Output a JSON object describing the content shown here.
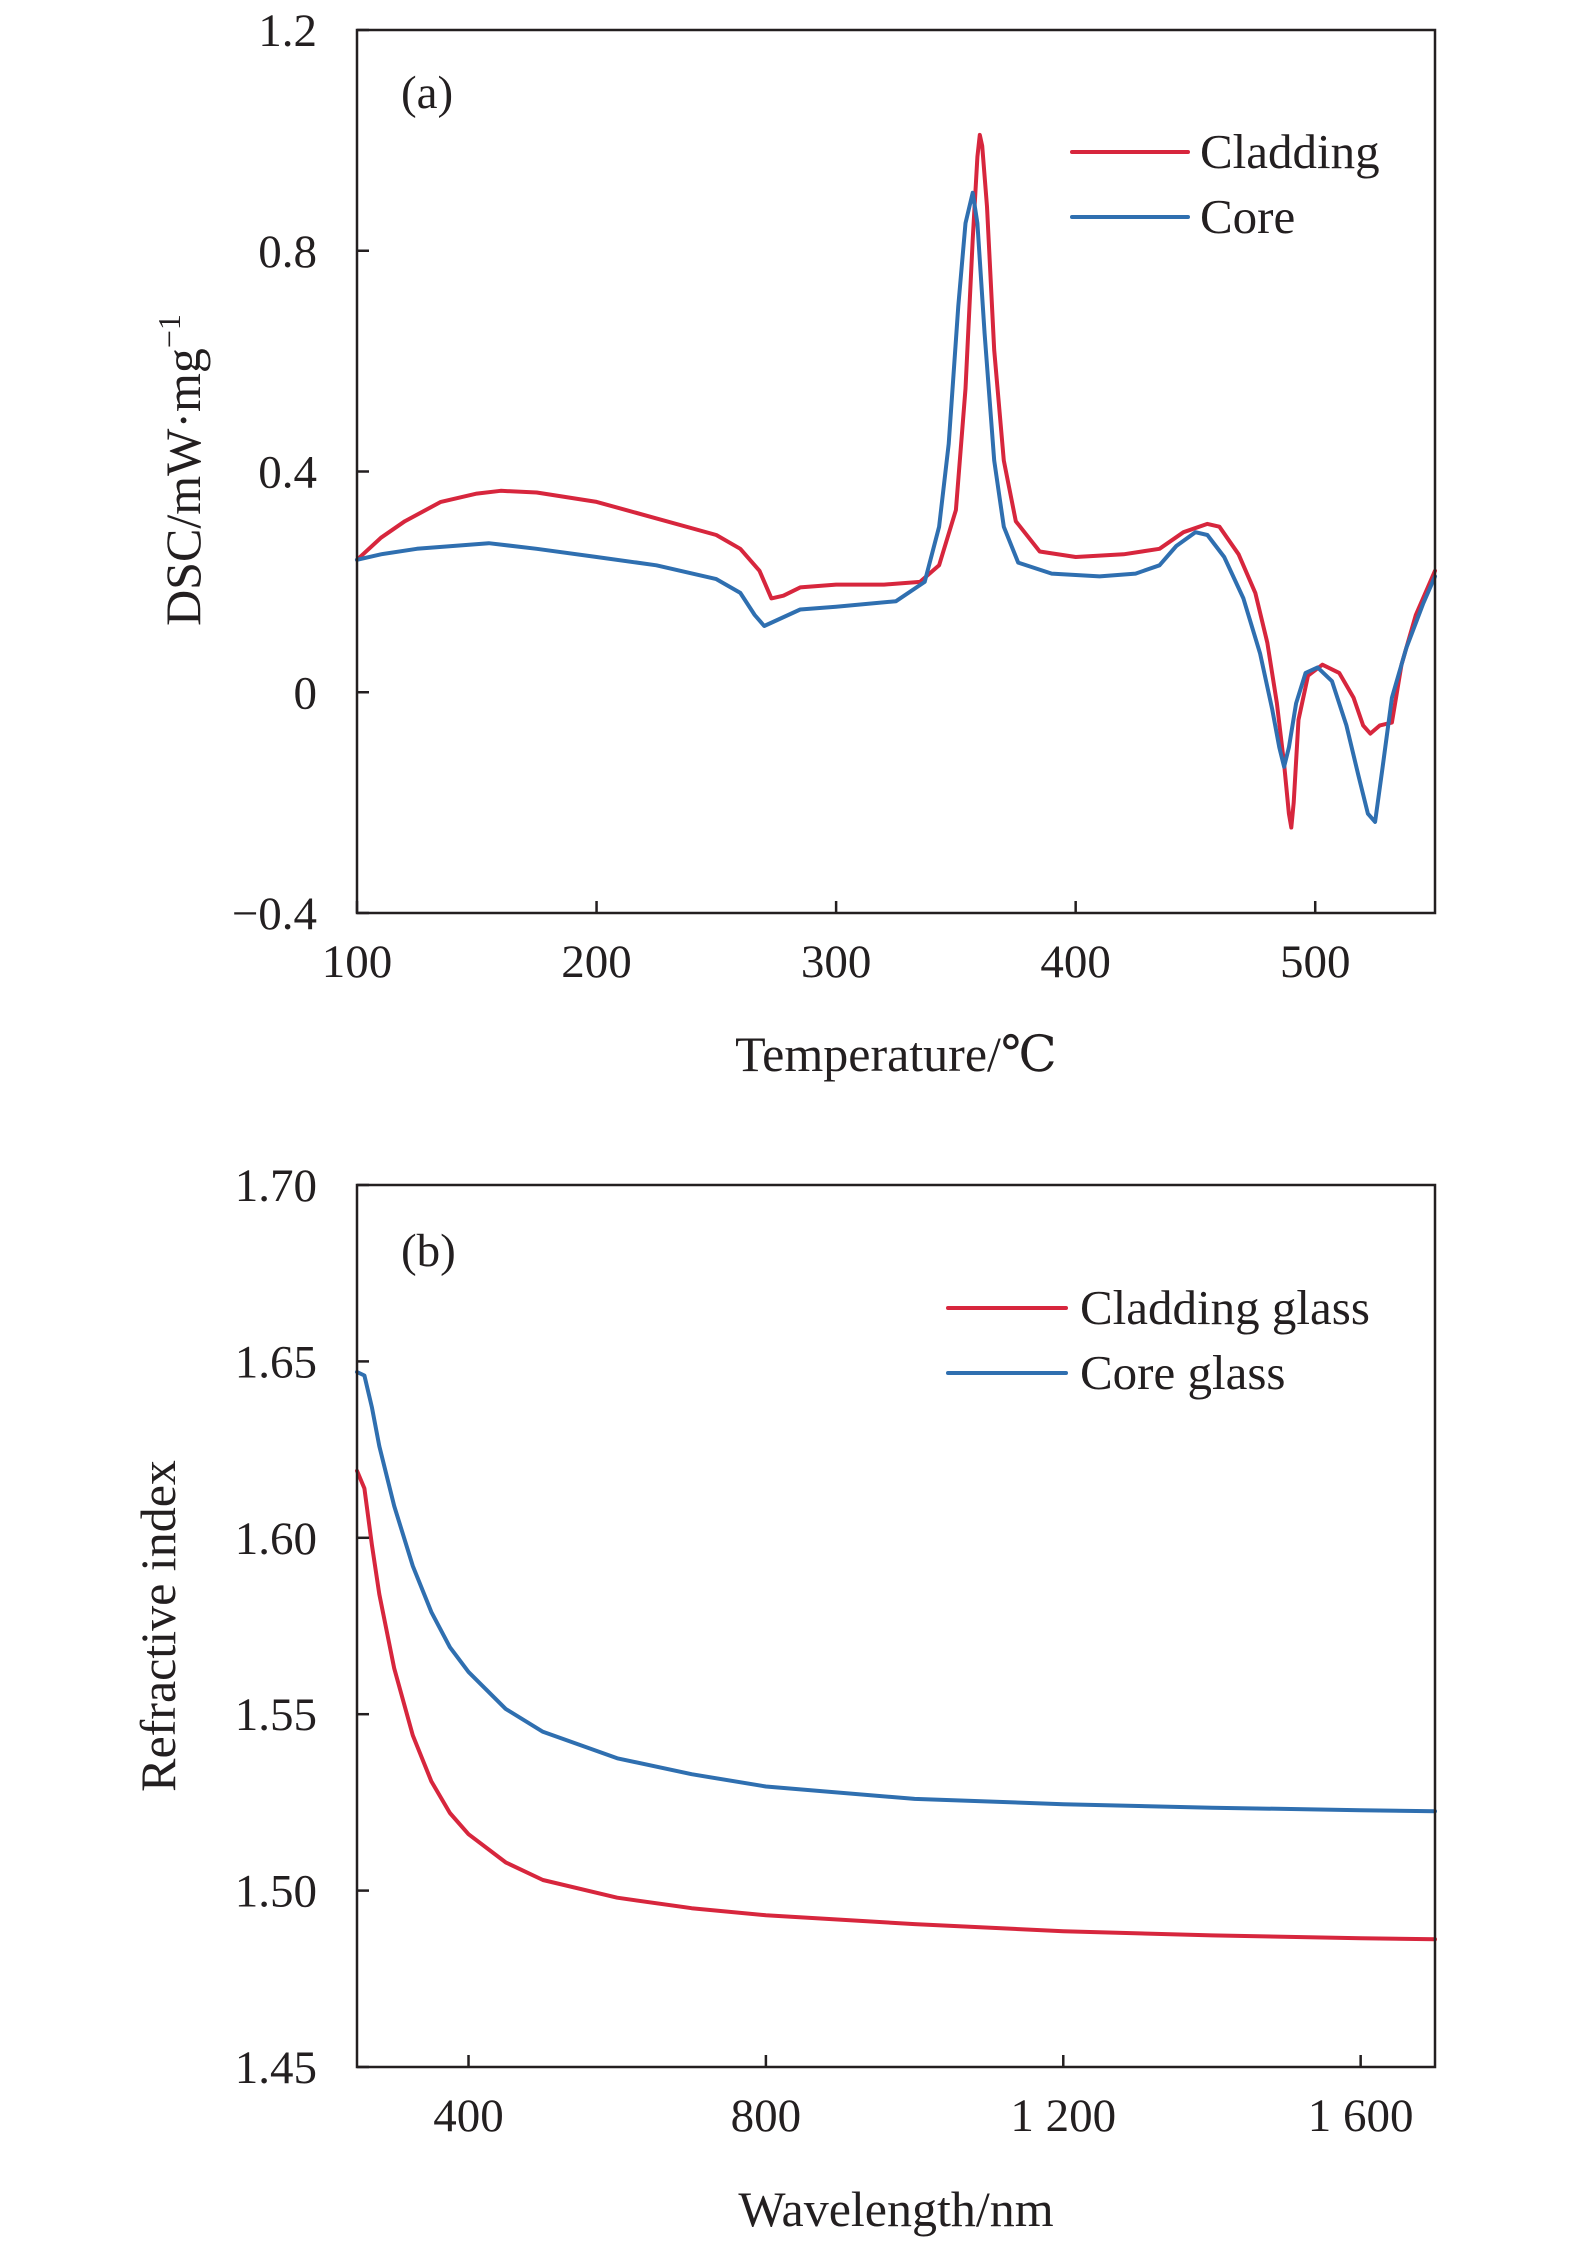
{
  "colors": {
    "cladding": "#d7263d",
    "core": "#2f6fb0",
    "axis": "#231f20"
  },
  "chart_data": [
    {
      "type": "line",
      "panel_label": "(a)",
      "xlabel": "Temperature/℃",
      "ylabel": "DSC/mW·mg",
      "ylabel_sup": "−1",
      "xlim": [
        100,
        550
      ],
      "ylim": [
        -0.4,
        1.2
      ],
      "xticks": [
        100,
        200,
        300,
        400,
        500
      ],
      "xtick_labels": [
        "100",
        "200",
        "300",
        "400",
        "500"
      ],
      "yticks": [
        -0.4,
        0,
        0.4,
        0.8,
        1.2
      ],
      "ytick_labels": [
        "−0.4",
        "0",
        "0.4",
        "0.8",
        "1.2"
      ],
      "legend_position": "top-right",
      "series": [
        {
          "name": "Cladding",
          "color_key": "cladding",
          "points": [
            [
              100,
              0.24
            ],
            [
              110,
              0.28
            ],
            [
              120,
              0.31
            ],
            [
              135,
              0.345
            ],
            [
              150,
              0.36
            ],
            [
              160,
              0.365
            ],
            [
              175,
              0.362
            ],
            [
              200,
              0.345
            ],
            [
              225,
              0.315
            ],
            [
              250,
              0.285
            ],
            [
              260,
              0.26
            ],
            [
              268,
              0.22
            ],
            [
              273,
              0.17
            ],
            [
              278,
              0.175
            ],
            [
              285,
              0.19
            ],
            [
              300,
              0.195
            ],
            [
              320,
              0.195
            ],
            [
              335,
              0.2
            ],
            [
              343,
              0.23
            ],
            [
              350,
              0.33
            ],
            [
              354,
              0.55
            ],
            [
              357,
              0.82
            ],
            [
              359,
              0.97
            ],
            [
              360,
              1.01
            ],
            [
              361,
              0.99
            ],
            [
              363,
              0.88
            ],
            [
              366,
              0.62
            ],
            [
              370,
              0.42
            ],
            [
              375,
              0.31
            ],
            [
              385,
              0.255
            ],
            [
              400,
              0.245
            ],
            [
              420,
              0.25
            ],
            [
              435,
              0.26
            ],
            [
              445,
              0.29
            ],
            [
              455,
              0.305
            ],
            [
              460,
              0.3
            ],
            [
              468,
              0.25
            ],
            [
              475,
              0.18
            ],
            [
              480,
              0.09
            ],
            [
              484,
              -0.02
            ],
            [
              487,
              -0.13
            ],
            [
              489,
              -0.22
            ],
            [
              490,
              -0.245
            ],
            [
              491,
              -0.2
            ],
            [
              493,
              -0.05
            ],
            [
              497,
              0.03
            ],
            [
              503,
              0.05
            ],
            [
              510,
              0.035
            ],
            [
              516,
              -0.01
            ],
            [
              520,
              -0.06
            ],
            [
              523,
              -0.075
            ],
            [
              527,
              -0.06
            ],
            [
              532,
              -0.055
            ],
            [
              536,
              0.05
            ],
            [
              542,
              0.14
            ],
            [
              550,
              0.22
            ]
          ]
        },
        {
          "name": "Core",
          "color_key": "core",
          "points": [
            [
              100,
              0.24
            ],
            [
              110,
              0.25
            ],
            [
              125,
              0.26
            ],
            [
              140,
              0.265
            ],
            [
              155,
              0.27
            ],
            [
              175,
              0.26
            ],
            [
              200,
              0.245
            ],
            [
              225,
              0.23
            ],
            [
              250,
              0.205
            ],
            [
              260,
              0.18
            ],
            [
              266,
              0.14
            ],
            [
              270,
              0.12
            ],
            [
              275,
              0.13
            ],
            [
              285,
              0.15
            ],
            [
              300,
              0.155
            ],
            [
              325,
              0.165
            ],
            [
              337,
              0.2
            ],
            [
              343,
              0.3
            ],
            [
              347,
              0.45
            ],
            [
              351,
              0.7
            ],
            [
              354,
              0.85
            ],
            [
              357,
              0.905
            ],
            [
              359,
              0.85
            ],
            [
              362,
              0.65
            ],
            [
              366,
              0.42
            ],
            [
              370,
              0.3
            ],
            [
              376,
              0.235
            ],
            [
              390,
              0.215
            ],
            [
              410,
              0.21
            ],
            [
              425,
              0.215
            ],
            [
              435,
              0.23
            ],
            [
              442,
              0.265
            ],
            [
              450,
              0.29
            ],
            [
              455,
              0.285
            ],
            [
              462,
              0.245
            ],
            [
              470,
              0.17
            ],
            [
              477,
              0.07
            ],
            [
              482,
              -0.03
            ],
            [
              485,
              -0.1
            ],
            [
              487,
              -0.135
            ],
            [
              489,
              -0.1
            ],
            [
              492,
              -0.02
            ],
            [
              496,
              0.035
            ],
            [
              501,
              0.045
            ],
            [
              507,
              0.02
            ],
            [
              513,
              -0.06
            ],
            [
              518,
              -0.15
            ],
            [
              522,
              -0.22
            ],
            [
              525,
              -0.235
            ],
            [
              528,
              -0.14
            ],
            [
              532,
              -0.01
            ],
            [
              538,
              0.08
            ],
            [
              545,
              0.16
            ],
            [
              550,
              0.21
            ]
          ]
        }
      ]
    },
    {
      "type": "line",
      "panel_label": "(b)",
      "xlabel": "Wavelength/nm",
      "ylabel": "Refractive index",
      "xlim": [
        250,
        1700
      ],
      "ylim": [
        1.45,
        1.7
      ],
      "xticks": [
        400,
        800,
        1200,
        1600
      ],
      "xtick_labels": [
        "400",
        "800",
        "1 200",
        "1 600"
      ],
      "yticks": [
        1.45,
        1.5,
        1.55,
        1.6,
        1.65,
        1.7
      ],
      "ytick_labels": [
        "1.45",
        "1.50",
        "1.55",
        "1.60",
        "1.65",
        "1.70"
      ],
      "legend_position": "top-right",
      "series": [
        {
          "name": "Cladding glass",
          "color_key": "cladding",
          "points": [
            [
              250,
              1.619
            ],
            [
              260,
              1.614
            ],
            [
              270,
              1.598
            ],
            [
              280,
              1.584
            ],
            [
              300,
              1.563
            ],
            [
              325,
              1.544
            ],
            [
              350,
              1.531
            ],
            [
              375,
              1.522
            ],
            [
              400,
              1.516
            ],
            [
              450,
              1.508
            ],
            [
              500,
              1.503
            ],
            [
              600,
              1.498
            ],
            [
              700,
              1.495
            ],
            [
              800,
              1.493
            ],
            [
              1000,
              1.4905
            ],
            [
              1200,
              1.4885
            ],
            [
              1400,
              1.4873
            ],
            [
              1600,
              1.4865
            ],
            [
              1700,
              1.4862
            ]
          ]
        },
        {
          "name": "Core glass",
          "color_key": "core",
          "points": [
            [
              250,
              1.647
            ],
            [
              260,
              1.646
            ],
            [
              270,
              1.637
            ],
            [
              280,
              1.626
            ],
            [
              300,
              1.609
            ],
            [
              325,
              1.592
            ],
            [
              350,
              1.579
            ],
            [
              375,
              1.569
            ],
            [
              400,
              1.562
            ],
            [
              450,
              1.5515
            ],
            [
              500,
              1.545
            ],
            [
              600,
              1.5375
            ],
            [
              700,
              1.533
            ],
            [
              800,
              1.5295
            ],
            [
              1000,
              1.526
            ],
            [
              1200,
              1.5245
            ],
            [
              1400,
              1.5235
            ],
            [
              1600,
              1.5228
            ],
            [
              1700,
              1.5225
            ]
          ]
        }
      ]
    }
  ]
}
